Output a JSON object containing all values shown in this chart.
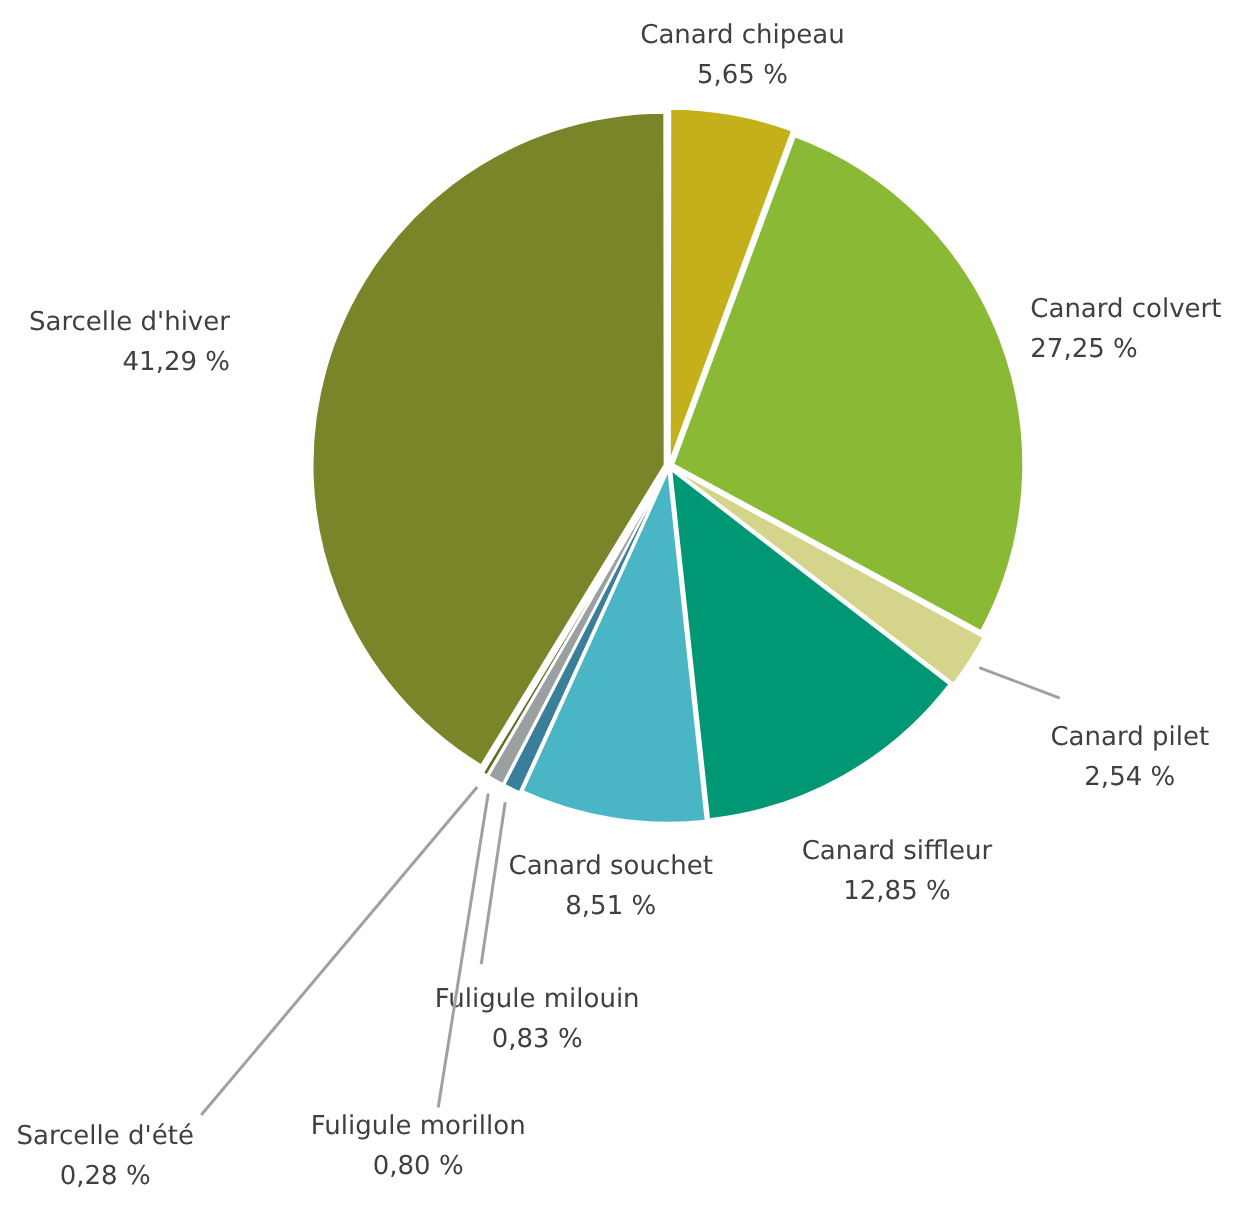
{
  "chart_data": {
    "type": "pie",
    "categories": [
      "Canard chipeau",
      "Canard colvert",
      "Canard pilet",
      "Canard siffleur",
      "Canard souchet",
      "Fuligule milouin",
      "Fuligule morillon",
      "Sarcelle d'été",
      "Sarcelle d'hiver"
    ],
    "values": [
      5.65,
      27.25,
      2.54,
      12.85,
      8.51,
      0.83,
      0.8,
      0.28,
      41.29
    ],
    "colors": [
      "#c4b01a",
      "#8ab936",
      "#d4d48a",
      "#009775",
      "#4ab5c4",
      "#3a7f9a",
      "#9aa0a0",
      "#5f6b1f",
      "#7a8428"
    ],
    "value_labels": [
      "5,65 %",
      "27,25 %",
      "2,54 %",
      "12,85 %",
      "8,51 %",
      "0,83 %",
      "0,80 %",
      "0,28 %",
      "41,29 %"
    ]
  }
}
